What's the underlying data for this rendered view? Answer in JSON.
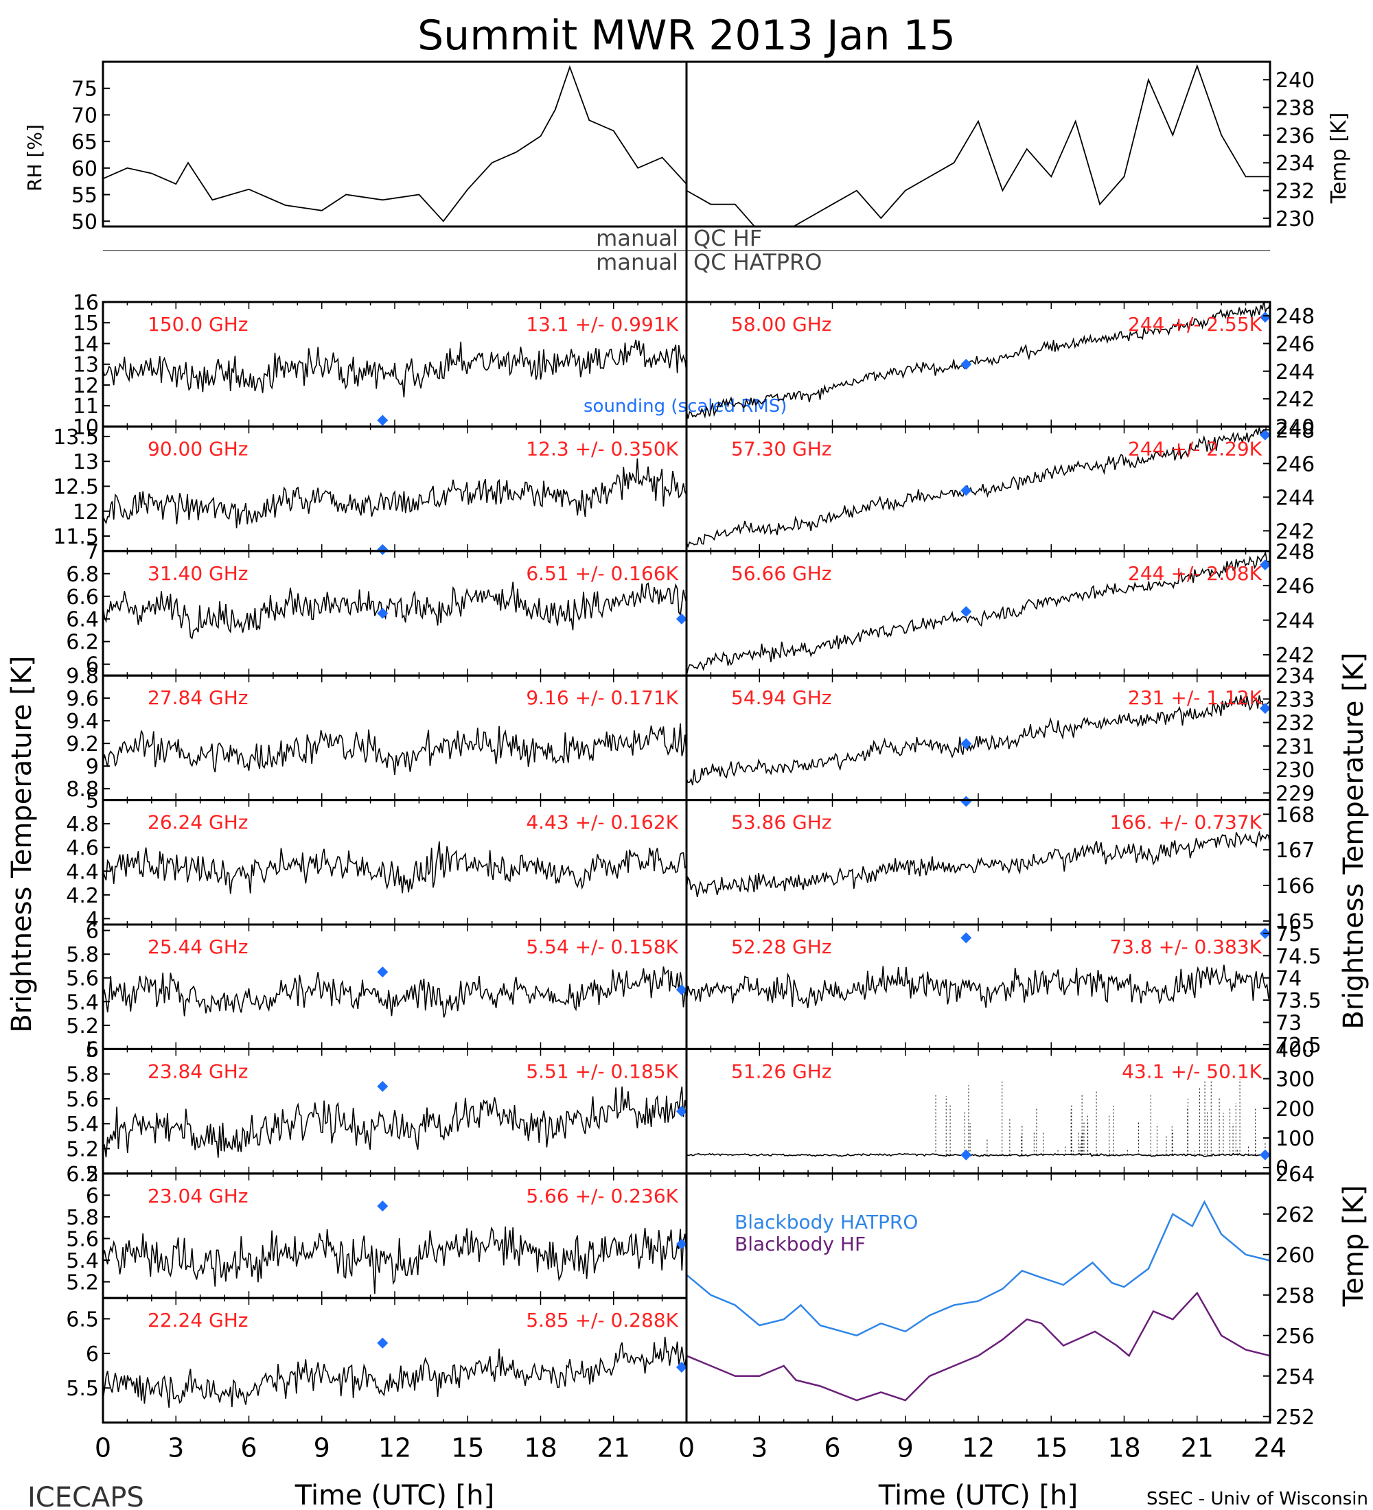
{
  "title": "Summit MWR 2013 Jan 15",
  "footer": {
    "left": "ICECAPS",
    "right": "SSEC - Univ of Wisconsin"
  },
  "colors": {
    "data": "#000000",
    "label": "#ff2020",
    "sounding": "#1f6fff",
    "bb_hatpro": "#2f86e8",
    "bb_hf": "#6a1f7a",
    "qc_line": "#555555"
  },
  "met": {
    "rh_label": "RH [%]",
    "temp_label": "Temp [K]",
    "rh_ticks": [
      50,
      55,
      60,
      65,
      70,
      75
    ],
    "temp_ticks": [
      230,
      232,
      234,
      236,
      238,
      240
    ]
  },
  "qc": {
    "line1_left": "manual",
    "line1_right": "QC HF",
    "line2_left": "manual",
    "line2_right": "QC HATPRO"
  },
  "axis_labels": {
    "left_y": "Brightness Temperature [K]",
    "right_y": "Brightness Temperature [K]",
    "bb_y": "Temp [K]",
    "x": "Time (UTC) [h]"
  },
  "x_ticks_left": [
    "0",
    "3",
    "6",
    "9",
    "12",
    "15",
    "18",
    "21"
  ],
  "x_ticks_right": [
    "0",
    "3",
    "6",
    "9",
    "12",
    "15",
    "18",
    "21",
    "24"
  ],
  "sounding_label": "sounding (scaled RMS)",
  "chart_data": {
    "type": "line",
    "x_unit": "hours UTC",
    "xlim": [
      0,
      24
    ],
    "met_panel": {
      "rh_series": [
        [
          0,
          58
        ],
        [
          1,
          60
        ],
        [
          2,
          59
        ],
        [
          3,
          57
        ],
        [
          3.5,
          61
        ],
        [
          4.5,
          54
        ],
        [
          6,
          56
        ],
        [
          7.5,
          53
        ],
        [
          9,
          52
        ],
        [
          10,
          55
        ],
        [
          11.5,
          54
        ],
        [
          13,
          55
        ],
        [
          14,
          50
        ],
        [
          15,
          56
        ],
        [
          16,
          61
        ],
        [
          17,
          63
        ],
        [
          18,
          66
        ],
        [
          18.6,
          71
        ],
        [
          19.2,
          79
        ],
        [
          20,
          69
        ],
        [
          21,
          67
        ],
        [
          22,
          60
        ],
        [
          23,
          62
        ],
        [
          24,
          57
        ]
      ],
      "temp_series": [
        [
          0,
          232
        ],
        [
          1,
          231
        ],
        [
          2,
          231
        ],
        [
          3,
          229
        ],
        [
          4,
          229
        ],
        [
          5,
          230
        ],
        [
          6,
          231
        ],
        [
          7,
          232
        ],
        [
          8,
          230
        ],
        [
          9,
          232
        ],
        [
          10,
          233
        ],
        [
          11,
          234
        ],
        [
          12,
          237
        ],
        [
          13,
          232
        ],
        [
          14,
          235
        ],
        [
          15,
          233
        ],
        [
          16,
          237
        ],
        [
          17,
          231
        ],
        [
          18,
          233
        ],
        [
          19,
          240
        ],
        [
          20,
          236
        ],
        [
          21,
          241
        ],
        [
          22,
          236
        ],
        [
          23,
          233
        ],
        [
          24,
          233
        ]
      ]
    },
    "channels_left": [
      {
        "freq": "150.0 GHz",
        "stats": "13.1 +/- 0.991K",
        "ylim": [
          10,
          16
        ],
        "ticks": [
          10,
          11,
          12,
          13,
          14,
          15,
          16
        ],
        "start": 12.4,
        "end": 13.2,
        "noise": 0.9,
        "sounding": [
          [
            11.5,
            10.3
          ]
        ]
      },
      {
        "freq": "90.00 GHz",
        "stats": "12.3 +/- 0.350K",
        "ylim": [
          11.2,
          13.7
        ],
        "ticks": [
          11.5,
          12.0,
          12.5,
          13.0,
          13.5
        ],
        "start": 12.0,
        "end": 12.5,
        "noise": 0.35,
        "sounding": [
          [
            11.5,
            11.2
          ]
        ]
      },
      {
        "freq": "31.40 GHz",
        "stats": "6.51 +/- 0.166K",
        "ylim": [
          5.9,
          7.0
        ],
        "ticks": [
          6.0,
          6.2,
          6.4,
          6.6,
          6.8,
          7.0
        ],
        "start": 6.45,
        "end": 6.55,
        "noise": 0.16,
        "sounding": [
          [
            11.5,
            6.45
          ],
          [
            23.8,
            6.4
          ]
        ]
      },
      {
        "freq": "27.84 GHz",
        "stats": "9.16 +/- 0.171K",
        "ylim": [
          8.7,
          9.8
        ],
        "ticks": [
          8.8,
          9.0,
          9.2,
          9.4,
          9.6,
          9.8
        ],
        "start": 9.1,
        "end": 9.2,
        "noise": 0.17,
        "sounding": []
      },
      {
        "freq": "26.24 GHz",
        "stats": "4.43 +/- 0.162K",
        "ylim": [
          3.95,
          5.0
        ],
        "ticks": [
          4.0,
          4.2,
          4.4,
          4.6,
          4.8,
          5.0
        ],
        "start": 4.4,
        "end": 4.45,
        "noise": 0.16,
        "sounding": []
      },
      {
        "freq": "25.44 GHz",
        "stats": "5.54 +/- 0.158K",
        "ylim": [
          5.0,
          6.05
        ],
        "ticks": [
          5.0,
          5.2,
          5.4,
          5.6,
          5.8,
          6.0
        ],
        "start": 5.45,
        "end": 5.5,
        "noise": 0.16,
        "sounding": [
          [
            11.5,
            5.65
          ],
          [
            23.8,
            5.5
          ]
        ]
      },
      {
        "freq": "23.84 GHz",
        "stats": "5.51 +/- 0.185K",
        "ylim": [
          5.0,
          6.0
        ],
        "ticks": [
          5.0,
          5.2,
          5.4,
          5.6,
          5.8,
          6.0
        ],
        "start": 5.3,
        "end": 5.5,
        "noise": 0.18,
        "sounding": [
          [
            11.5,
            5.7
          ],
          [
            23.8,
            5.5
          ]
        ]
      },
      {
        "freq": "23.04 GHz",
        "stats": "5.66 +/- 0.236K",
        "ylim": [
          5.05,
          6.2
        ],
        "ticks": [
          5.2,
          5.4,
          5.6,
          5.8,
          6.0,
          6.2
        ],
        "start": 5.4,
        "end": 5.5,
        "noise": 0.23,
        "sounding": [
          [
            11.5,
            5.9
          ],
          [
            23.8,
            5.55
          ]
        ]
      },
      {
        "freq": "22.24 GHz",
        "stats": "5.85 +/- 0.288K",
        "ylim": [
          5.0,
          6.8
        ],
        "ticks": [
          5.5,
          6.0,
          6.5
        ],
        "start": 5.45,
        "end": 5.9,
        "noise": 0.28,
        "sounding": [
          [
            11.5,
            6.15
          ],
          [
            23.8,
            5.8
          ]
        ]
      }
    ],
    "channels_right": [
      {
        "freq": "58.00 GHz",
        "stats": "244 +/- 2.55K",
        "ylim": [
          240,
          249
        ],
        "ticks": [
          240,
          242,
          244,
          246,
          248
        ],
        "start": 241,
        "end": 248.5,
        "noise": 0.5,
        "sounding": [
          [
            11.5,
            244.5
          ],
          [
            23.8,
            247.9
          ]
        ]
      },
      {
        "freq": "57.30 GHz",
        "stats": "244 +/- 2.29K",
        "ylim": [
          240.8,
          248.2
        ],
        "ticks": [
          242,
          244,
          246,
          248
        ],
        "start": 241.3,
        "end": 247.8,
        "noise": 0.5,
        "sounding": [
          [
            11.5,
            244.4
          ],
          [
            23.8,
            247.7
          ]
        ]
      },
      {
        "freq": "56.66 GHz",
        "stats": "244 +/- 2.08K",
        "ylim": [
          240.8,
          248
        ],
        "ticks": [
          242,
          244,
          246,
          248
        ],
        "start": 241.2,
        "end": 247.4,
        "noise": 0.45,
        "sounding": [
          [
            11.5,
            244.5
          ],
          [
            23.8,
            247.2
          ]
        ]
      },
      {
        "freq": "54.94 GHz",
        "stats": "231 +/- 1.12K",
        "ylim": [
          228.7,
          234
        ],
        "ticks": [
          229,
          230,
          231,
          232,
          233,
          234
        ],
        "start": 229.7,
        "end": 232.8,
        "noise": 0.4,
        "sounding": [
          [
            11.5,
            231.1
          ],
          [
            23.8,
            232.6
          ]
        ]
      },
      {
        "freq": "53.86 GHz",
        "stats": "166. +/- 0.737K",
        "ylim": [
          164.9,
          168.4
        ],
        "ticks": [
          165,
          166,
          167,
          168
        ],
        "start": 165.9,
        "end": 167.3,
        "noise": 0.3,
        "sounding": [
          [
            11.5,
            168.4
          ]
        ]
      },
      {
        "freq": "52.28 GHz",
        "stats": "73.8 +/- 0.383K",
        "ylim": [
          72.4,
          75.2
        ],
        "ticks": [
          72.5,
          73.0,
          73.5,
          74.0,
          74.5,
          75.0
        ],
        "start": 73.7,
        "end": 73.9,
        "noise": 0.38,
        "sounding": [
          [
            11.5,
            74.9
          ],
          [
            23.8,
            75.0
          ]
        ]
      },
      {
        "freq": "51.26 GHz",
        "stats": "43.1 +/- 50.1K",
        "ylim": [
          -20,
          400
        ],
        "ticks": [
          0,
          100,
          200,
          300,
          400
        ],
        "start": 43,
        "end": 43,
        "noise": 4,
        "spikes": true,
        "sounding": [
          [
            11.5,
            43
          ],
          [
            23.8,
            43
          ]
        ]
      }
    ],
    "blackbody": {
      "ylim": [
        251.7,
        264
      ],
      "ticks": [
        252,
        254,
        256,
        258,
        260,
        262,
        264
      ],
      "series": [
        {
          "name": "Blackbody HATPRO",
          "points": [
            [
              0,
              259
            ],
            [
              1,
              258
            ],
            [
              2,
              257.5
            ],
            [
              3,
              256.5
            ],
            [
              4,
              256.8
            ],
            [
              4.7,
              257.5
            ],
            [
              5.5,
              256.5
            ],
            [
              7,
              256
            ],
            [
              8,
              256.6
            ],
            [
              9,
              256.2
            ],
            [
              10,
              257
            ],
            [
              11,
              257.5
            ],
            [
              12,
              257.7
            ],
            [
              13,
              258.3
            ],
            [
              13.8,
              259.2
            ],
            [
              14.5,
              258.9
            ],
            [
              15.5,
              258.5
            ],
            [
              16.7,
              259.6
            ],
            [
              17.5,
              258.6
            ],
            [
              18,
              258.4
            ],
            [
              19,
              259.3
            ],
            [
              20,
              262
            ],
            [
              20.8,
              261.4
            ],
            [
              21.3,
              262.6
            ],
            [
              22,
              261
            ],
            [
              23,
              260
            ],
            [
              24,
              259.7
            ]
          ]
        },
        {
          "name": "Blackbody HF",
          "points": [
            [
              0,
              255
            ],
            [
              1,
              254.5
            ],
            [
              2,
              254
            ],
            [
              3,
              254
            ],
            [
              4,
              254.5
            ],
            [
              4.5,
              253.8
            ],
            [
              5.5,
              253.5
            ],
            [
              7,
              252.8
            ],
            [
              8,
              253.2
            ],
            [
              9,
              252.8
            ],
            [
              10,
              254
            ],
            [
              11,
              254.5
            ],
            [
              12,
              255
            ],
            [
              13,
              255.8
            ],
            [
              14,
              256.8
            ],
            [
              14.6,
              256.6
            ],
            [
              15.5,
              255.5
            ],
            [
              16.8,
              256.2
            ],
            [
              17.7,
              255.5
            ],
            [
              18.2,
              255
            ],
            [
              19.2,
              257.2
            ],
            [
              20,
              256.8
            ],
            [
              21,
              258.1
            ],
            [
              22,
              256
            ],
            [
              23,
              255.3
            ],
            [
              24,
              255
            ]
          ]
        }
      ]
    }
  }
}
